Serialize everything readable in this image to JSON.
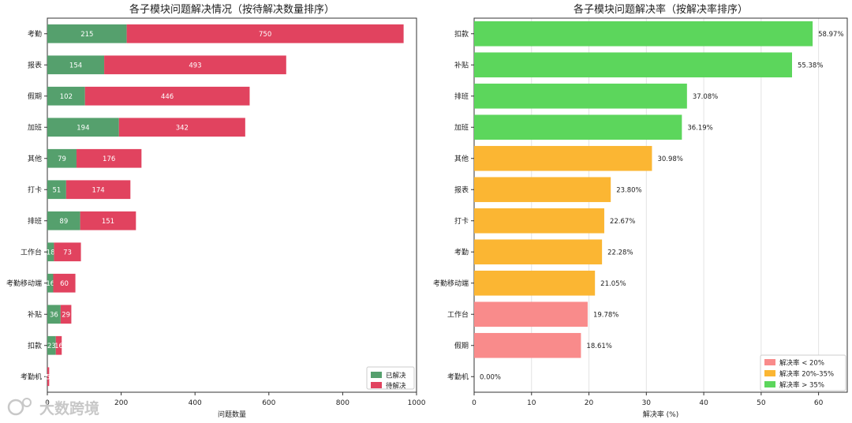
{
  "watermark": "大数跨境",
  "chart_data": [
    {
      "type": "bar",
      "orientation": "horizontal",
      "stacked": true,
      "title": "各子模块问题解决情况（按待解决数量排序）",
      "xlabel": "问题数量",
      "ylabel": "",
      "xlim": [
        0,
        1000
      ],
      "xticks": [
        "0",
        "200",
        "400",
        "600",
        "800",
        "1000"
      ],
      "categories": [
        "考勤",
        "报表",
        "假期",
        "加班",
        "其他",
        "打卡",
        "排班",
        "工作台",
        "考勤移动端",
        "补贴",
        "扣款",
        "考勤机"
      ],
      "series": [
        {
          "name": "已解决",
          "color": "#55a06d",
          "values": [
            215,
            154,
            102,
            194,
            79,
            51,
            89,
            18,
            16,
            36,
            23,
            0
          ],
          "labels": [
            "215",
            "154",
            "102",
            "194",
            "79",
            "51",
            "89",
            "18",
            "16",
            "36",
            "23",
            "0"
          ]
        },
        {
          "name": "待解决",
          "color": "#e1435f",
          "values": [
            750,
            493,
            446,
            342,
            176,
            174,
            151,
            73,
            60,
            29,
            16,
            5
          ],
          "labels": [
            "750",
            "493",
            "446",
            "342",
            "176",
            "174",
            "151",
            "73",
            "60",
            "29",
            "16",
            "5"
          ]
        }
      ],
      "grid": false,
      "legend_position": "lower-right"
    },
    {
      "type": "bar",
      "orientation": "horizontal",
      "title": "各子模块问题解决率（按解决率排序）",
      "xlabel": "解决率 (%)",
      "ylabel": "",
      "xlim": [
        0,
        65
      ],
      "xticks": [
        "0",
        "10",
        "20",
        "30",
        "40",
        "50",
        "60"
      ],
      "categories": [
        "扣款",
        "补贴",
        "排班",
        "加班",
        "其他",
        "报表",
        "打卡",
        "考勤",
        "考勤移动端",
        "工作台",
        "假期",
        "考勤机"
      ],
      "values": [
        58.97,
        55.38,
        37.08,
        36.19,
        30.98,
        23.8,
        22.67,
        22.28,
        21.05,
        19.78,
        18.61,
        0.0
      ],
      "value_labels": [
        "58.97%",
        "55.38%",
        "37.08%",
        "36.19%",
        "30.98%",
        "23.80%",
        "22.67%",
        "22.28%",
        "21.05%",
        "19.78%",
        "18.61%",
        "0.00%"
      ],
      "bins": [
        {
          "name": "解决率 < 20%",
          "color": "#f98b8b",
          "max": 20
        },
        {
          "name": "解决率 20%-35%",
          "color": "#fbb633",
          "max": 35
        },
        {
          "name": "解决率 > 35%",
          "color": "#5cd65c",
          "max": 1000
        }
      ],
      "grid": true,
      "legend_position": "lower-right"
    }
  ]
}
